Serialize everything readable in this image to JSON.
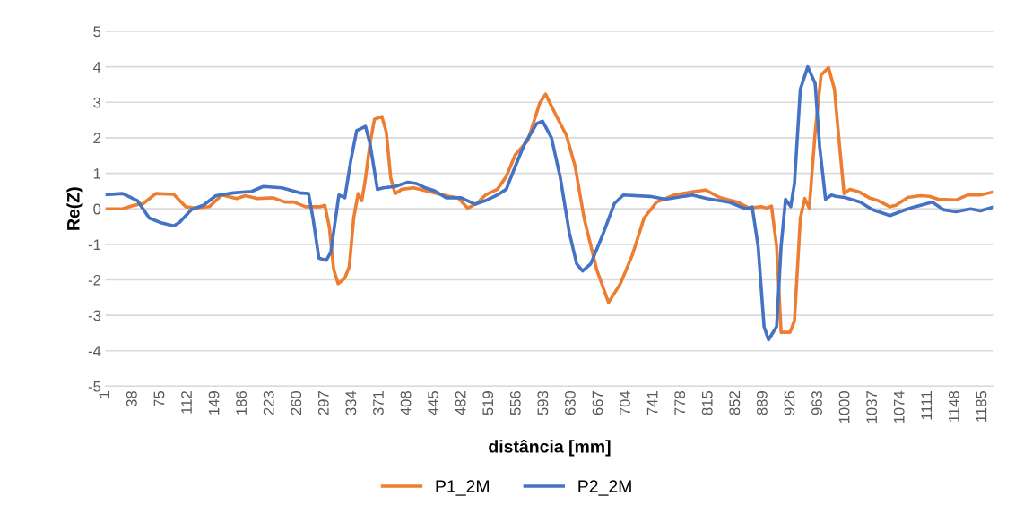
{
  "chart_data": {
    "type": "line",
    "xlabel": "distância [mm]",
    "ylabel": "Re(Z)",
    "xlim": [
      1,
      1200
    ],
    "xticks": [
      1,
      38,
      75,
      112,
      149,
      186,
      223,
      260,
      297,
      334,
      371,
      408,
      445,
      482,
      519,
      556,
      593,
      630,
      667,
      704,
      741,
      778,
      815,
      852,
      889,
      926,
      963,
      1000,
      1037,
      1074,
      1111,
      1148,
      1185
    ],
    "ylim": [
      -5,
      5
    ],
    "yticks": [
      -5,
      -4,
      -3,
      -2,
      -1,
      0,
      1,
      2,
      3,
      4,
      5
    ],
    "grid": "y",
    "legend": "bottom",
    "marker": "none",
    "line_style": "solid",
    "series": [
      {
        "name": "P1_2M",
        "color": "#ed7d31",
        "x": [
          1,
          24,
          36,
          52,
          69,
          93,
          109,
          121,
          141,
          158,
          178,
          190,
          206,
          227,
          243,
          255,
          271,
          291,
          297,
          303,
          309,
          315,
          324,
          330,
          336,
          342,
          347,
          352,
          358,
          364,
          374,
          380,
          386,
          392,
          401,
          417,
          433,
          449,
          465,
          477,
          490,
          502,
          514,
          530,
          542,
          554,
          571,
          587,
          595,
          611,
          623,
          635,
          647,
          664,
          680,
          696,
          712,
          728,
          745,
          769,
          793,
          811,
          830,
          854,
          870,
          886,
          894,
          900,
          907,
          913,
          925,
          931,
          939,
          945,
          951,
          959,
          967,
          977,
          985,
          992,
          998,
          1006,
          1018,
          1032,
          1044,
          1060,
          1068,
          1084,
          1101,
          1113,
          1125,
          1149,
          1166,
          1182,
          1200
        ],
        "values": [
          0,
          0,
          0.08,
          0.15,
          0.43,
          0.41,
          0.06,
          0.02,
          0.06,
          0.39,
          0.29,
          0.37,
          0.29,
          0.31,
          0.19,
          0.19,
          0.06,
          0.06,
          0.1,
          -0.5,
          -1.71,
          -2.11,
          -1.95,
          -1.63,
          -0.26,
          0.43,
          0.23,
          0.87,
          1.84,
          2.52,
          2.6,
          2.16,
          0.87,
          0.43,
          0.55,
          0.59,
          0.51,
          0.43,
          0.35,
          0.31,
          0.02,
          0.15,
          0.39,
          0.55,
          0.91,
          1.52,
          1.92,
          2.97,
          3.23,
          2.56,
          2.08,
          1.19,
          -0.26,
          -1.71,
          -2.64,
          -2.11,
          -1.31,
          -0.26,
          0.19,
          0.39,
          0.48,
          0.53,
          0.32,
          0.19,
          0.02,
          0.06,
          0.02,
          0.08,
          -1.06,
          -3.48,
          -3.48,
          -3.16,
          -0.26,
          0.29,
          0.02,
          2.16,
          3.77,
          3.98,
          3.37,
          1.76,
          0.43,
          0.55,
          0.48,
          0.31,
          0.23,
          0.06,
          0.1,
          0.32,
          0.37,
          0.35,
          0.27,
          0.25,
          0.4,
          0.39,
          0.48
        ]
      },
      {
        "name": "P2_2M",
        "color": "#4472c4",
        "x": [
          1,
          24,
          44,
          60,
          77,
          93,
          101,
          117,
          133,
          150,
          174,
          198,
          214,
          239,
          263,
          275,
          281,
          289,
          299,
          305,
          316,
          324,
          332,
          340,
          352,
          358,
          368,
          376,
          392,
          409,
          421,
          433,
          445,
          461,
          481,
          500,
          514,
          530,
          542,
          554,
          567,
          583,
          591,
          603,
          615,
          627,
          637,
          645,
          656,
          672,
          688,
          700,
          736,
          757,
          793,
          813,
          842,
          866,
          874,
          882,
          890,
          896,
          907,
          913,
          919,
          926,
          931,
          939,
          949,
          959,
          965,
          973,
          981,
          987,
          999,
          1020,
          1036,
          1060,
          1084,
          1117,
          1133,
          1149,
          1169,
          1182,
          1200
        ],
        "values": [
          0.4,
          0.43,
          0.23,
          -0.26,
          -0.4,
          -0.48,
          -0.38,
          -0.02,
          0.1,
          0.37,
          0.45,
          0.49,
          0.63,
          0.59,
          0.45,
          0.43,
          -0.26,
          -1.39,
          -1.45,
          -1.23,
          0.39,
          0.31,
          1.35,
          2.2,
          2.32,
          1.84,
          0.55,
          0.59,
          0.63,
          0.75,
          0.71,
          0.59,
          0.51,
          0.31,
          0.31,
          0.13,
          0.23,
          0.39,
          0.55,
          1.19,
          1.84,
          2.4,
          2.47,
          2.0,
          0.87,
          -0.66,
          -1.55,
          -1.75,
          -1.55,
          -0.74,
          0.15,
          0.39,
          0.35,
          0.27,
          0.39,
          0.29,
          0.19,
          0,
          0.05,
          -1.06,
          -3.32,
          -3.69,
          -3.32,
          -1.06,
          0.27,
          0.06,
          0.71,
          3.37,
          4.0,
          3.53,
          1.76,
          0.27,
          0.39,
          0.35,
          0.32,
          0.19,
          -0.02,
          -0.19,
          0,
          0.19,
          -0.03,
          -0.08,
          0,
          -0.06,
          0.05
        ]
      }
    ]
  }
}
